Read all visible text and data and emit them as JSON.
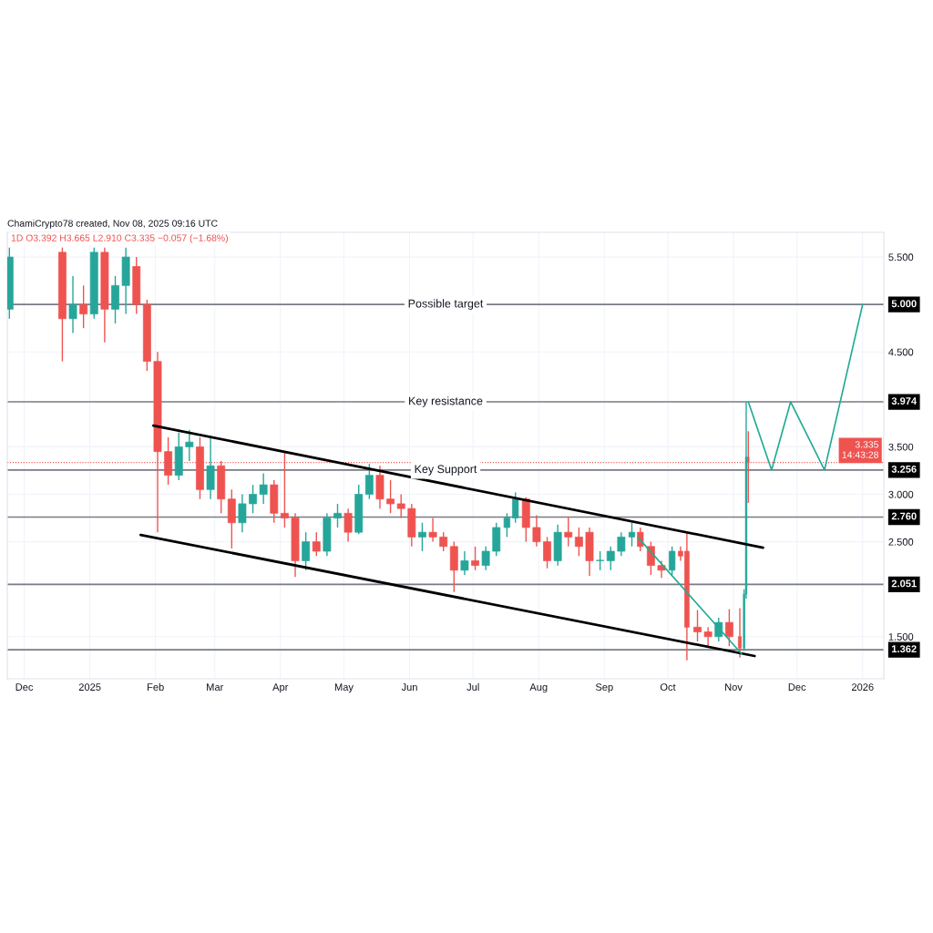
{
  "chart_data": {
    "type": "candlestick",
    "annotations": [
      "ChamiCrypto78 created, Nov 08, 2025 09:16 UTC",
      "1D O3.392 H3.665 L2.910 C3.335 −0.057 (−1.68%)",
      "3.335\n14:43:28",
      "Possible target",
      "Key resistance",
      "Key Support"
    ],
    "x": [
      "2024-11-24",
      "2024-12-19",
      "2024-12-24",
      "2024-12-29",
      "2025-01-03",
      "2025-01-08",
      "2025-01-13",
      "2025-01-18",
      "2025-01-23",
      "2025-01-28",
      "2025-02-02",
      "2025-02-07",
      "2025-02-12",
      "2025-02-17",
      "2025-02-22",
      "2025-02-27",
      "2025-03-04",
      "2025-03-09",
      "2025-03-14",
      "2025-03-19",
      "2025-03-24",
      "2025-03-29",
      "2025-04-03",
      "2025-04-08",
      "2025-04-13",
      "2025-04-18",
      "2025-04-23",
      "2025-04-28",
      "2025-05-03",
      "2025-05-08",
      "2025-05-13",
      "2025-05-18",
      "2025-05-23",
      "2025-05-28",
      "2025-06-02",
      "2025-06-07",
      "2025-06-12",
      "2025-06-17",
      "2025-06-22",
      "2025-06-27",
      "2025-07-02",
      "2025-07-07",
      "2025-07-12",
      "2025-07-17",
      "2025-07-21",
      "2025-07-26",
      "2025-07-31",
      "2025-08-05",
      "2025-08-10",
      "2025-08-15",
      "2025-08-20",
      "2025-08-25",
      "2025-08-30",
      "2025-09-04",
      "2025-09-09",
      "2025-09-14",
      "2025-09-18",
      "2025-09-23",
      "2025-09-28",
      "2025-10-03",
      "2025-10-07",
      "2025-10-10",
      "2025-10-15",
      "2025-10-20",
      "2025-10-25",
      "2025-10-30",
      "2025-11-04",
      "2025-11-06",
      "2025-11-07",
      "2025-11-08"
    ],
    "ohlc": [
      [
        4.95,
        5.6,
        4.85,
        5.5
      ],
      [
        5.55,
        5.6,
        4.4,
        4.85
      ],
      [
        4.85,
        5.3,
        4.7,
        5.0
      ],
      [
        5.0,
        5.2,
        4.75,
        4.9
      ],
      [
        4.9,
        5.6,
        4.85,
        5.55
      ],
      [
        5.55,
        5.6,
        4.6,
        4.95
      ],
      [
        4.95,
        5.3,
        4.8,
        5.2
      ],
      [
        5.2,
        5.6,
        4.9,
        5.5
      ],
      [
        5.4,
        5.5,
        4.9,
        5.0
      ],
      [
        5.0,
        5.05,
        4.3,
        4.4
      ],
      [
        4.4,
        4.5,
        2.6,
        3.45
      ],
      [
        3.45,
        3.6,
        3.1,
        3.2
      ],
      [
        3.2,
        3.65,
        3.15,
        3.5
      ],
      [
        3.5,
        3.68,
        3.35,
        3.55
      ],
      [
        3.5,
        3.6,
        2.95,
        3.05
      ],
      [
        3.05,
        3.62,
        2.95,
        3.3
      ],
      [
        3.3,
        3.35,
        2.8,
        2.95
      ],
      [
        2.95,
        3.05,
        2.43,
        2.7
      ],
      [
        2.7,
        3.0,
        2.6,
        2.9
      ],
      [
        2.9,
        3.1,
        2.8,
        3.0
      ],
      [
        3.0,
        3.22,
        2.9,
        3.1
      ],
      [
        3.1,
        3.15,
        2.7,
        2.8
      ],
      [
        2.8,
        3.45,
        2.65,
        2.75
      ],
      [
        2.75,
        2.8,
        2.13,
        2.3
      ],
      [
        2.3,
        2.6,
        2.2,
        2.5
      ],
      [
        2.5,
        2.6,
        2.35,
        2.4
      ],
      [
        2.4,
        2.8,
        2.35,
        2.75
      ],
      [
        2.75,
        2.9,
        2.65,
        2.8
      ],
      [
        2.8,
        2.85,
        2.5,
        2.6
      ],
      [
        2.6,
        3.1,
        2.58,
        3.0
      ],
      [
        3.0,
        3.32,
        2.95,
        3.2
      ],
      [
        3.2,
        3.3,
        2.85,
        2.95
      ],
      [
        2.95,
        3.15,
        2.8,
        2.9
      ],
      [
        2.9,
        3.0,
        2.75,
        2.85
      ],
      [
        2.85,
        2.9,
        2.45,
        2.55
      ],
      [
        2.55,
        2.7,
        2.4,
        2.6
      ],
      [
        2.6,
        2.75,
        2.5,
        2.55
      ],
      [
        2.55,
        2.6,
        2.4,
        2.45
      ],
      [
        2.45,
        2.5,
        1.97,
        2.2
      ],
      [
        2.2,
        2.4,
        2.15,
        2.3
      ],
      [
        2.3,
        2.45,
        2.2,
        2.25
      ],
      [
        2.25,
        2.45,
        2.2,
        2.4
      ],
      [
        2.4,
        2.7,
        2.35,
        2.65
      ],
      [
        2.65,
        2.8,
        2.55,
        2.75
      ],
      [
        2.75,
        3.02,
        2.7,
        2.95
      ],
      [
        2.95,
        2.97,
        2.5,
        2.65
      ],
      [
        2.65,
        2.78,
        2.45,
        2.5
      ],
      [
        2.5,
        2.55,
        2.22,
        2.3
      ],
      [
        2.3,
        2.68,
        2.25,
        2.6
      ],
      [
        2.6,
        2.76,
        2.45,
        2.55
      ],
      [
        2.55,
        2.65,
        2.35,
        2.45
      ],
      [
        2.6,
        2.65,
        2.14,
        2.3
      ],
      [
        2.3,
        2.4,
        2.2,
        2.3
      ],
      [
        2.3,
        2.45,
        2.2,
        2.4
      ],
      [
        2.4,
        2.6,
        2.35,
        2.55
      ],
      [
        2.55,
        2.7,
        2.45,
        2.6
      ],
      [
        2.6,
        2.65,
        2.4,
        2.45
      ],
      [
        2.45,
        2.5,
        2.15,
        2.25
      ],
      [
        2.25,
        2.3,
        2.12,
        2.2
      ],
      [
        2.2,
        2.45,
        2.15,
        2.4
      ],
      [
        2.4,
        2.45,
        2.3,
        2.35
      ],
      [
        2.4,
        2.59,
        1.25,
        1.6
      ],
      [
        1.6,
        1.78,
        1.45,
        1.55
      ],
      [
        1.55,
        1.6,
        1.4,
        1.5
      ],
      [
        1.5,
        1.7,
        1.45,
        1.65
      ],
      [
        1.65,
        1.79,
        1.4,
        1.5
      ],
      [
        1.5,
        1.8,
        1.28,
        1.38
      ],
      [
        1.38,
        2.0,
        1.35,
        1.95
      ],
      [
        1.95,
        3.974,
        1.9,
        3.392
      ],
      [
        3.392,
        3.665,
        2.91,
        3.335
      ]
    ],
    "colors": [
      "#26a69a",
      "#ef5350",
      "#26a69a",
      "#ef5350",
      "#26a69a",
      "#ef5350",
      "#26a69a",
      "#26a69a",
      "#ef5350",
      "#ef5350",
      "#ef5350",
      "#ef5350",
      "#26a69a",
      "#26a69a",
      "#ef5350",
      "#26a69a",
      "#ef5350",
      "#ef5350",
      "#26a69a",
      "#26a69a",
      "#26a69a",
      "#ef5350",
      "#ef5350",
      "#ef5350",
      "#26a69a",
      "#ef5350",
      "#26a69a",
      "#26a69a",
      "#ef5350",
      "#26a69a",
      "#26a69a",
      "#ef5350",
      "#ef5350",
      "#ef5350",
      "#ef5350",
      "#26a69a",
      "#ef5350",
      "#ef5350",
      "#ef5350",
      "#26a69a",
      "#ef5350",
      "#26a69a",
      "#26a69a",
      "#26a69a",
      "#26a69a",
      "#ef5350",
      "#ef5350",
      "#ef5350",
      "#26a69a",
      "#ef5350",
      "#ef5350",
      "#ef5350",
      "#26a69a",
      "#26a69a",
      "#26a69a",
      "#26a69a",
      "#ef5350",
      "#ef5350",
      "#ef5350",
      "#26a69a",
      "#ef5350",
      "#ef5350",
      "#ef5350",
      "#ef5350",
      "#26a69a",
      "#ef5350",
      "#ef5350",
      "#26a69a",
      "#26a69a",
      "#ef5350"
    ],
    "series": [
      {
        "type": "line",
        "x": [
          "2025-01-31",
          "2025-11-15"
        ],
        "values": [
          3.724,
          2.438
        ],
        "color": "#000000"
      },
      {
        "type": "line",
        "x": [
          "2025-01-25",
          "2025-11-11"
        ],
        "values": [
          2.572,
          1.296
        ],
        "color": "#000000"
      },
      {
        "type": "line",
        "x": [
          "2025-09-17",
          "2025-11-05"
        ],
        "values": [
          2.543,
          1.315
        ],
        "color": "#22ab94"
      },
      {
        "type": "line",
        "x": [
          "2025-11-08",
          "2025-11-19",
          "2025-11-28",
          "2025-12-14",
          "2026-01-01"
        ],
        "values": [
          3.974,
          3.256,
          3.974,
          3.256,
          5.0
        ],
        "color": "#22ab94"
      }
    ],
    "ref_lines": [
      {
        "axis": "y",
        "value": 5.0,
        "label": "5.000",
        "color": "#787b86"
      },
      {
        "axis": "y",
        "value": 3.974,
        "label": "3.974",
        "color": "#787b86"
      },
      {
        "axis": "y",
        "value": 3.256,
        "label": "3.256",
        "color": "#787b86"
      },
      {
        "axis": "y",
        "value": 2.76,
        "label": "2.760",
        "color": "#787b86"
      },
      {
        "axis": "y",
        "value": 2.051,
        "label": "2.051",
        "color": "#787b86"
      },
      {
        "axis": "y",
        "value": 1.362,
        "label": "1.362",
        "color": "#787b86"
      },
      {
        "axis": "y",
        "value": 3.335,
        "color": "#ef5350",
        "line_style": "dotted"
      }
    ],
    "xlim": [
      "2024-11-23",
      "2026-01-11"
    ],
    "xticks": [
      {
        "value": "2024-12-01",
        "label": "Dec"
      },
      {
        "value": "2025-01-01",
        "label": "2025"
      },
      {
        "value": "2025-02-01",
        "label": "Feb"
      },
      {
        "value": "2025-03-01",
        "label": "Mar"
      },
      {
        "value": "2025-04-01",
        "label": "Apr"
      },
      {
        "value": "2025-05-01",
        "label": "May"
      },
      {
        "value": "2025-06-01",
        "label": "Jun"
      },
      {
        "value": "2025-07-01",
        "label": "Jul"
      },
      {
        "value": "2025-08-01",
        "label": "Aug"
      },
      {
        "value": "2025-09-01",
        "label": "Sep"
      },
      {
        "value": "2025-10-01",
        "label": "Oct"
      },
      {
        "value": "2025-11-01",
        "label": "Nov"
      },
      {
        "value": "2025-12-01",
        "label": "Dec"
      },
      {
        "value": "2026-01-01",
        "label": "2026"
      }
    ],
    "ylim": [
      1.056,
      5.76
    ],
    "yticks": [
      {
        "value": 1.5,
        "label": "1.500"
      },
      {
        "value": 2.5,
        "label": "2.500"
      },
      {
        "value": 3.0,
        "label": "3.000"
      },
      {
        "value": 3.5,
        "label": "3.500"
      },
      {
        "value": 4.5,
        "label": "4.500"
      },
      {
        "value": 5.5,
        "label": "5.500"
      }
    ],
    "grid": true
  }
}
